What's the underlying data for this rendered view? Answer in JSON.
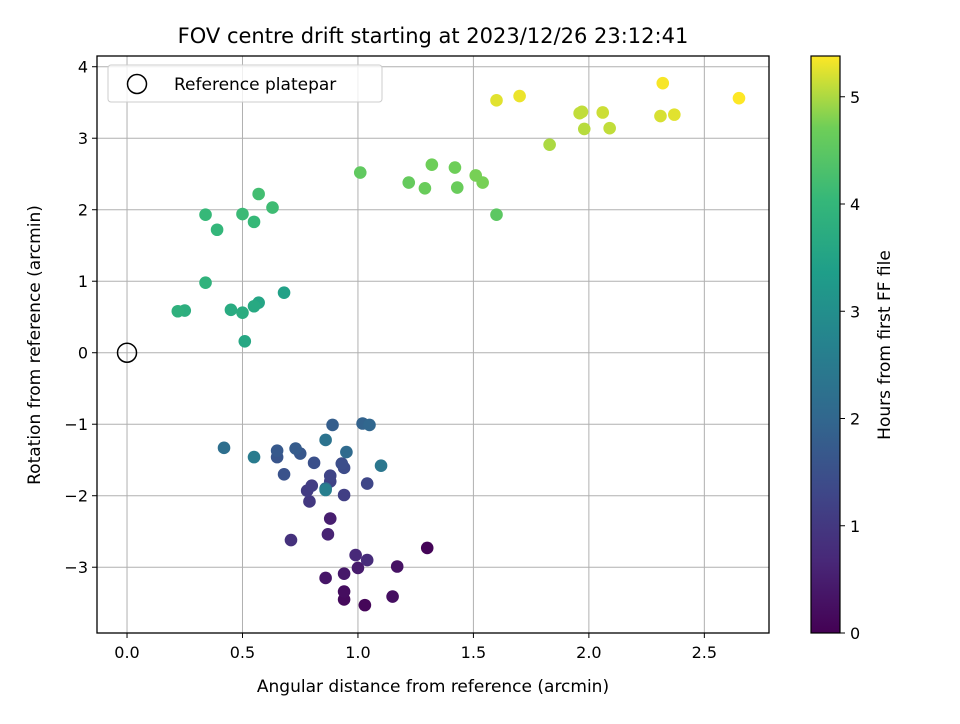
{
  "chart_data": {
    "type": "scatter",
    "title": "FOV centre drift starting at 2023/12/26 23:12:41",
    "xlabel": "Angular distance from reference (arcmin)",
    "ylabel": "Rotation from reference (arcmin)",
    "xlim": [
      -0.13,
      2.78
    ],
    "ylim": [
      -3.92,
      4.15
    ],
    "xticks": [
      0.0,
      0.5,
      1.0,
      1.5,
      2.0,
      2.5
    ],
    "yticks": [
      -3,
      -2,
      -1,
      0,
      1,
      2,
      3,
      4
    ],
    "xtick_labels": [
      "0.0",
      "0.5",
      "1.0",
      "1.5",
      "2.0",
      "2.5"
    ],
    "ytick_labels": [
      "−3",
      "−2",
      "−1",
      "0",
      "1",
      "2",
      "3",
      "4"
    ],
    "grid": true,
    "legend": {
      "placement": "top-left",
      "entries": [
        {
          "label": "Reference platepar",
          "marker": "open-circle"
        }
      ]
    },
    "reference_point": {
      "x": 0.0,
      "y": 0.0
    },
    "colorbar": {
      "label": "Hours from first FF file",
      "colormap": "viridis",
      "range": [
        0,
        5.38
      ],
      "ticks": [
        0,
        1,
        2,
        3,
        4,
        5
      ],
      "tick_labels": [
        "0",
        "1",
        "2",
        "3",
        "4",
        "5"
      ]
    },
    "points": [
      {
        "x": 1.3,
        "y": -2.73,
        "c": 0.05
      },
      {
        "x": 1.03,
        "y": -3.53,
        "c": 0.1
      },
      {
        "x": 0.94,
        "y": -3.45,
        "c": 0.15
      },
      {
        "x": 0.94,
        "y": -3.34,
        "c": 0.2
      },
      {
        "x": 1.15,
        "y": -3.41,
        "c": 0.25
      },
      {
        "x": 1.17,
        "y": -2.99,
        "c": 0.3
      },
      {
        "x": 0.86,
        "y": -3.15,
        "c": 0.35
      },
      {
        "x": 0.94,
        "y": -3.09,
        "c": 0.4
      },
      {
        "x": 1.0,
        "y": -3.01,
        "c": 0.45
      },
      {
        "x": 0.88,
        "y": -2.32,
        "c": 0.5
      },
      {
        "x": 0.87,
        "y": -2.54,
        "c": 0.6
      },
      {
        "x": 0.99,
        "y": -2.83,
        "c": 0.7
      },
      {
        "x": 1.04,
        "y": -2.9,
        "c": 0.75
      },
      {
        "x": 0.71,
        "y": -2.62,
        "c": 0.85
      },
      {
        "x": 0.79,
        "y": -2.08,
        "c": 1.0
      },
      {
        "x": 0.78,
        "y": -1.93,
        "c": 1.05
      },
      {
        "x": 0.8,
        "y": -1.86,
        "c": 1.1
      },
      {
        "x": 0.94,
        "y": -1.99,
        "c": 1.15
      },
      {
        "x": 0.88,
        "y": -1.8,
        "c": 1.2
      },
      {
        "x": 0.88,
        "y": -1.72,
        "c": 1.25
      },
      {
        "x": 1.04,
        "y": -1.83,
        "c": 1.3
      },
      {
        "x": 0.94,
        "y": -1.61,
        "c": 1.4
      },
      {
        "x": 0.93,
        "y": -1.55,
        "c": 1.45
      },
      {
        "x": 0.81,
        "y": -1.54,
        "c": 1.5
      },
      {
        "x": 0.68,
        "y": -1.7,
        "c": 1.55
      },
      {
        "x": 0.65,
        "y": -1.46,
        "c": 1.6
      },
      {
        "x": 0.75,
        "y": -1.41,
        "c": 1.65
      },
      {
        "x": 0.65,
        "y": -1.37,
        "c": 1.7
      },
      {
        "x": 0.73,
        "y": -1.34,
        "c": 1.75
      },
      {
        "x": 0.89,
        "y": -1.01,
        "c": 1.8
      },
      {
        "x": 1.02,
        "y": -0.99,
        "c": 1.9
      },
      {
        "x": 1.05,
        "y": -1.01,
        "c": 2.0
      },
      {
        "x": 0.95,
        "y": -1.39,
        "c": 2.1
      },
      {
        "x": 0.86,
        "y": -1.9,
        "c": 2.15
      },
      {
        "x": 0.42,
        "y": -1.33,
        "c": 2.2
      },
      {
        "x": 0.86,
        "y": -1.22,
        "c": 2.3
      },
      {
        "x": 1.1,
        "y": -1.58,
        "c": 2.4
      },
      {
        "x": 0.55,
        "y": -1.46,
        "c": 2.5
      },
      {
        "x": 0.86,
        "y": -1.92,
        "c": 2.6
      },
      {
        "x": 0.68,
        "y": 0.84,
        "c": 3.45
      },
      {
        "x": 0.57,
        "y": 0.7,
        "c": 3.55
      },
      {
        "x": 0.51,
        "y": 0.16,
        "c": 3.6
      },
      {
        "x": 0.55,
        "y": 0.65,
        "c": 3.65
      },
      {
        "x": 0.45,
        "y": 0.6,
        "c": 3.7
      },
      {
        "x": 0.5,
        "y": 0.56,
        "c": 3.75
      },
      {
        "x": 0.25,
        "y": 0.59,
        "c": 3.8
      },
      {
        "x": 0.22,
        "y": 0.58,
        "c": 3.85
      },
      {
        "x": 0.34,
        "y": 0.98,
        "c": 3.9
      },
      {
        "x": 0.39,
        "y": 1.72,
        "c": 4.0
      },
      {
        "x": 0.34,
        "y": 1.93,
        "c": 4.05
      },
      {
        "x": 0.55,
        "y": 1.83,
        "c": 4.05
      },
      {
        "x": 0.5,
        "y": 1.94,
        "c": 4.1
      },
      {
        "x": 0.63,
        "y": 2.03,
        "c": 4.15
      },
      {
        "x": 0.57,
        "y": 2.22,
        "c": 4.2
      },
      {
        "x": 1.6,
        "y": 1.93,
        "c": 4.5
      },
      {
        "x": 1.01,
        "y": 2.52,
        "c": 4.55
      },
      {
        "x": 1.22,
        "y": 2.38,
        "c": 4.6
      },
      {
        "x": 1.29,
        "y": 2.3,
        "c": 4.65
      },
      {
        "x": 1.43,
        "y": 2.31,
        "c": 4.65
      },
      {
        "x": 1.32,
        "y": 2.63,
        "c": 4.7
      },
      {
        "x": 1.42,
        "y": 2.59,
        "c": 4.7
      },
      {
        "x": 1.51,
        "y": 2.48,
        "c": 4.75
      },
      {
        "x": 1.54,
        "y": 2.38,
        "c": 4.75
      },
      {
        "x": 1.83,
        "y": 2.91,
        "c": 5.0
      },
      {
        "x": 1.98,
        "y": 3.13,
        "c": 5.05
      },
      {
        "x": 2.09,
        "y": 3.14,
        "c": 5.1
      },
      {
        "x": 1.96,
        "y": 3.35,
        "c": 5.1
      },
      {
        "x": 1.97,
        "y": 3.37,
        "c": 5.1
      },
      {
        "x": 2.06,
        "y": 3.36,
        "c": 5.15
      },
      {
        "x": 2.31,
        "y": 3.31,
        "c": 5.2
      },
      {
        "x": 2.37,
        "y": 3.33,
        "c": 5.25
      },
      {
        "x": 1.6,
        "y": 3.53,
        "c": 5.25
      },
      {
        "x": 1.7,
        "y": 3.59,
        "c": 5.3
      },
      {
        "x": 2.32,
        "y": 3.77,
        "c": 5.35
      },
      {
        "x": 2.65,
        "y": 3.56,
        "c": 5.38
      }
    ]
  }
}
